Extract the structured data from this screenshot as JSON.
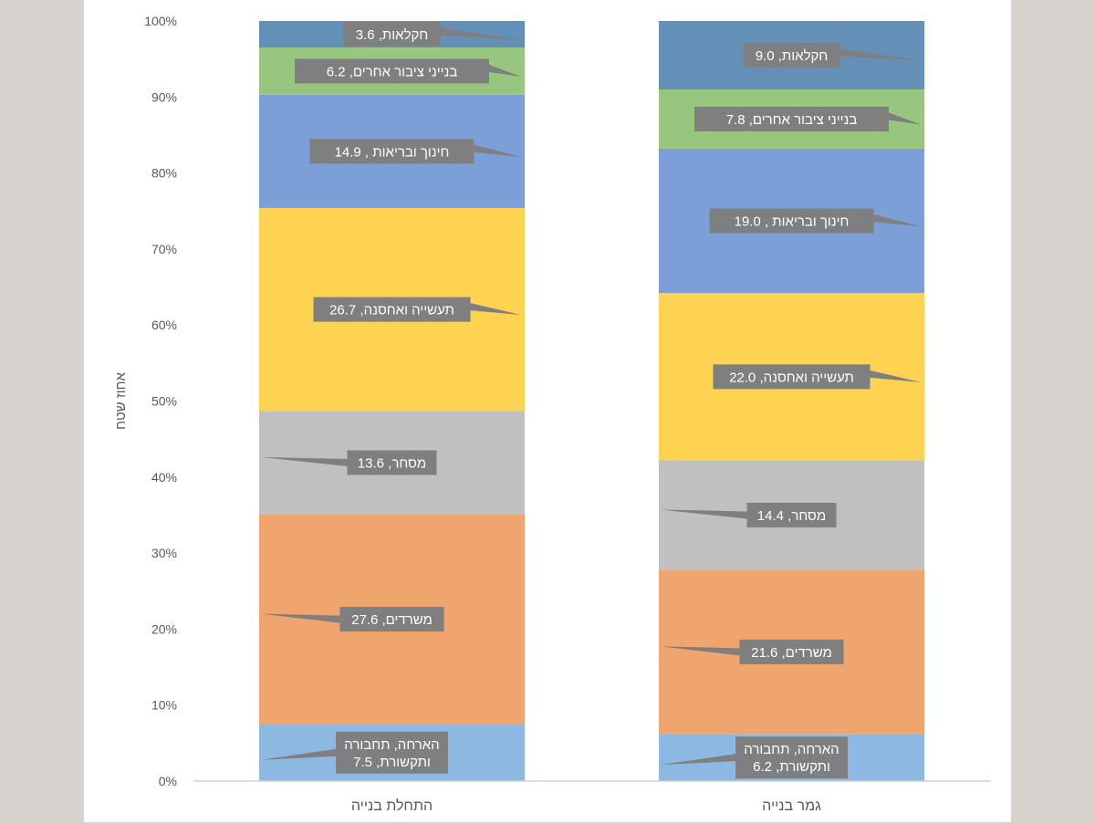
{
  "chart_data": {
    "type": "bar",
    "stacked": "percent",
    "title": "",
    "xlabel": "",
    "ylabel": "אחוז שטח",
    "ylim": [
      0,
      100
    ],
    "yticks": [
      "0%",
      "10%",
      "20%",
      "30%",
      "40%",
      "50%",
      "60%",
      "70%",
      "80%",
      "90%",
      "100%"
    ],
    "grid": false,
    "legend": "none",
    "categories": [
      "התחלת בנייה",
      "גמר בנייה"
    ],
    "series": [
      {
        "name": "הארחה, תחבורה ותקשורת",
        "label_lines": [
          "הארחה, תחבורה",
          "ותקשורת"
        ],
        "color": "#8db8e2",
        "values": [
          7.5,
          6.2
        ]
      },
      {
        "name": "משרדים",
        "label_lines": [
          "משרדים"
        ],
        "color": "#f0a46e",
        "values": [
          27.6,
          21.6
        ]
      },
      {
        "name": "מסחר",
        "label_lines": [
          "מסחר"
        ],
        "color": "#c0c0c0",
        "values": [
          13.6,
          14.4
        ]
      },
      {
        "name": "תעשייה ואחסנה",
        "label_lines": [
          "תעשייה ואחסנה"
        ],
        "color": "#fed352",
        "values": [
          26.7,
          22.0
        ]
      },
      {
        "name": "חינוך ובריאות",
        "label_lines": [
          "חינוך ובריאות ,"
        ],
        "color": "#7b9fd6",
        "values": [
          14.9,
          19.0
        ]
      },
      {
        "name": "בנייני ציבור אחרים",
        "label_lines": [
          "בנייני  ציבור אחרים"
        ],
        "color": "#99c67e",
        "values": [
          6.2,
          7.8
        ]
      },
      {
        "name": "חקלאות",
        "label_lines": [
          "חקלאות"
        ],
        "color": "#6490b8",
        "values": [
          3.6,
          9.0
        ]
      }
    ],
    "data_label_bg": "#7f7f7f",
    "data_label_color": "#ffffff"
  }
}
